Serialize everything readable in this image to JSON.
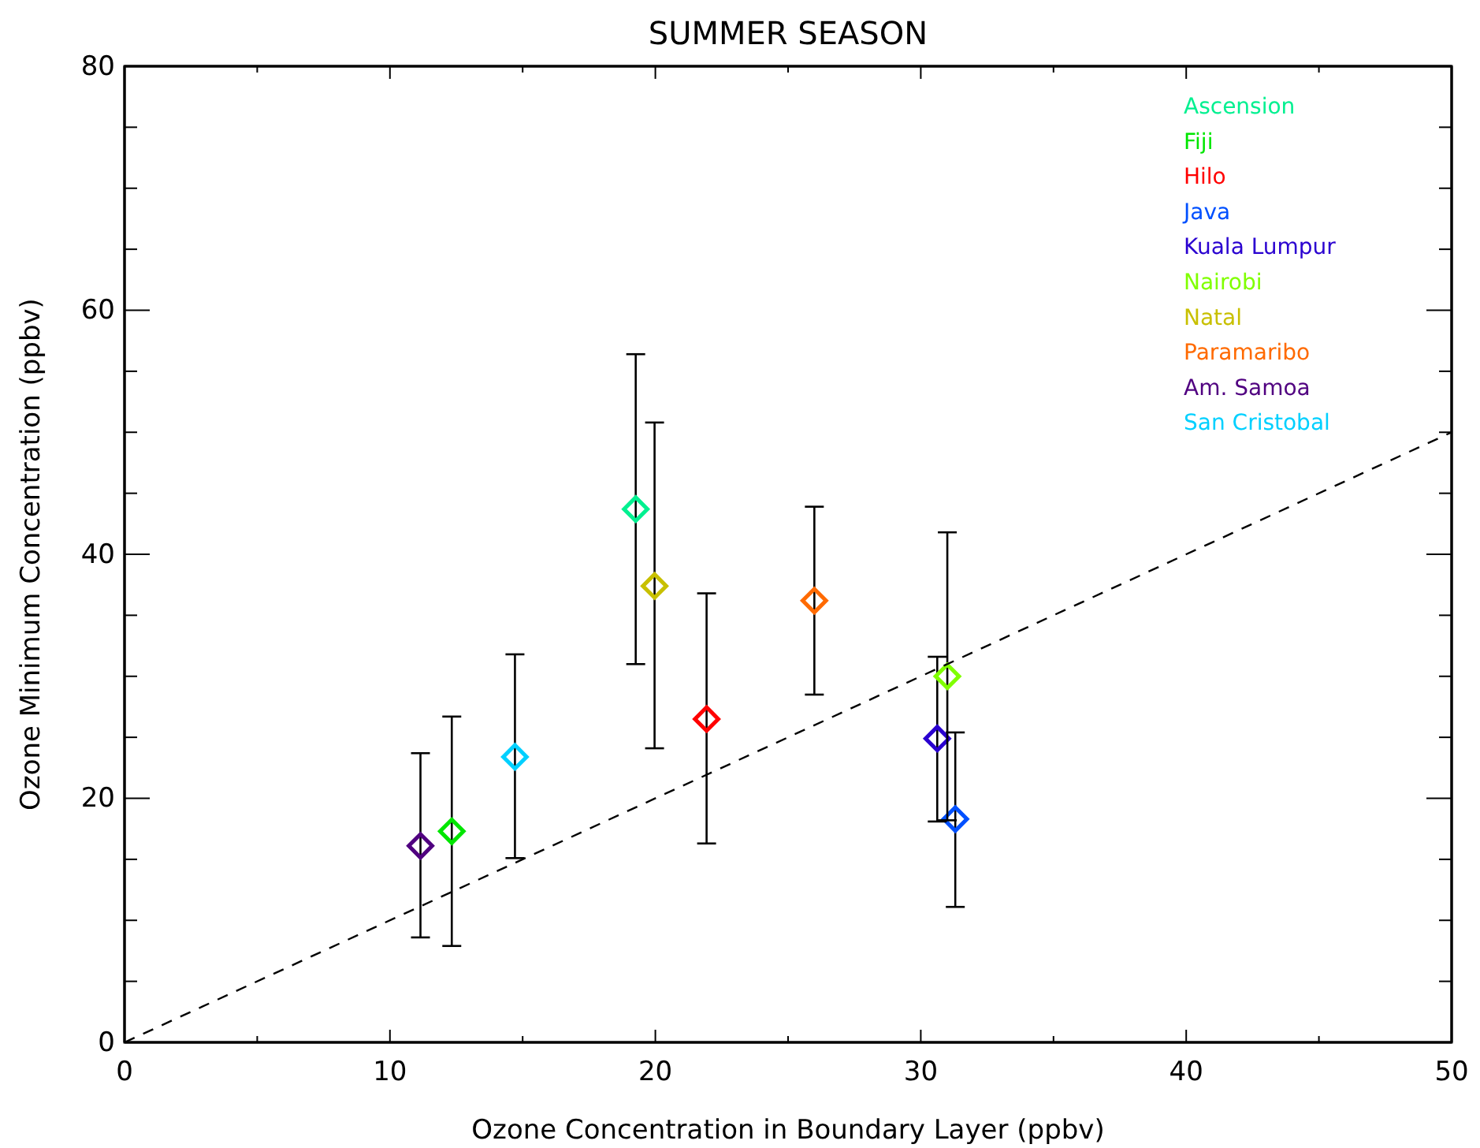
{
  "chart_data": {
    "type": "scatter",
    "title": "SUMMER SEASON",
    "xlabel": "Ozone Concentration in Boundary Layer (ppbv)",
    "ylabel": "Ozone Minimum Concentration (ppbv)",
    "xlim": [
      0,
      50
    ],
    "ylim": [
      0,
      80
    ],
    "xticks": [
      0,
      {
        "value": 5,
        "label": null
      },
      10,
      {
        "value": 15,
        "label": null
      },
      20,
      {
        "value": 25,
        "label": null
      },
      30,
      {
        "value": 35,
        "label": null
      },
      40,
      {
        "value": 45,
        "label": null
      },
      50
    ],
    "yticks": [
      0,
      {
        "value": 5,
        "label": null
      },
      {
        "value": 10,
        "label": null
      },
      {
        "value": 15,
        "label": null
      },
      20,
      {
        "value": 25,
        "label": null
      },
      {
        "value": 30,
        "label": null
      },
      {
        "value": 35,
        "label": null
      },
      40,
      {
        "value": 45,
        "label": null
      },
      {
        "value": 50,
        "label": null
      },
      {
        "value": 55,
        "label": null
      },
      60,
      {
        "value": 65,
        "label": null
      },
      {
        "value": 70,
        "label": null
      },
      {
        "value": 75,
        "label": null
      },
      80
    ],
    "grid": false,
    "legend": "top right",
    "marker": "diamond",
    "series": [
      {
        "name": "Ascension",
        "color": "#00f090",
        "x": [
          19.26
        ],
        "values": [
          43.7
        ],
        "errors": [
          [
            31.0,
            56.4
          ]
        ]
      },
      {
        "name": "Fiji",
        "color": "#00e600",
        "x": [
          12.33
        ],
        "values": [
          17.3
        ],
        "errors": [
          [
            7.9,
            26.7
          ]
        ]
      },
      {
        "name": "Hilo",
        "color": "#ff0000",
        "x": [
          21.93
        ],
        "values": [
          26.5
        ],
        "errors": [
          [
            16.3,
            36.8
          ]
        ]
      },
      {
        "name": "Java",
        "color": "#0050ff",
        "x": [
          31.3
        ],
        "values": [
          18.3
        ],
        "errors": [
          [
            11.1,
            25.4
          ]
        ]
      },
      {
        "name": "Kuala Lumpur",
        "color": "#2a00d0",
        "x": [
          30.62
        ],
        "values": [
          24.9
        ],
        "errors": [
          [
            18.1,
            31.6
          ]
        ]
      },
      {
        "name": "Nairobi",
        "color": "#80ff00",
        "x": [
          31.0
        ],
        "values": [
          30.0
        ],
        "errors": [
          [
            18.2,
            41.8
          ]
        ]
      },
      {
        "name": "Natal",
        "color": "#c8c000",
        "x": [
          19.97
        ],
        "values": [
          37.4
        ],
        "errors": [
          [
            24.1,
            50.8
          ]
        ]
      },
      {
        "name": "Paramaribo",
        "color": "#ff6a00",
        "x": [
          25.99
        ],
        "values": [
          36.2
        ],
        "errors": [
          [
            28.5,
            43.9
          ]
        ]
      },
      {
        "name": "Am. Samoa",
        "color": "#500080",
        "x": [
          11.15
        ],
        "values": [
          16.1
        ],
        "errors": [
          [
            8.6,
            23.7
          ]
        ]
      },
      {
        "name": "San Cristobal",
        "color": "#00d0ff",
        "x": [
          14.71
        ],
        "values": [
          23.4
        ],
        "errors": [
          [
            15.1,
            31.8
          ]
        ]
      },
      {
        "type": "line",
        "color": "#000000",
        "line_style": "dashed",
        "marker": "none",
        "x": [
          0,
          50
        ],
        "values": [
          0,
          50
        ]
      }
    ]
  }
}
